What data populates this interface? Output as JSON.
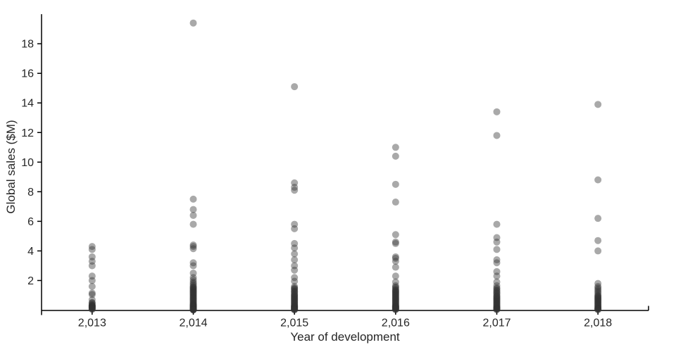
{
  "chart_data": {
    "type": "scatter",
    "title": "",
    "xlabel": "Year of development",
    "ylabel": "Global sales ($M)",
    "x_tick_labels": [
      "2,013",
      "2,014",
      "2,015",
      "2,016",
      "2,017",
      "2,018"
    ],
    "yticks": [
      2,
      4,
      6,
      8,
      10,
      12,
      14,
      16,
      18
    ],
    "ylim": [
      0,
      20
    ],
    "grid": false,
    "legend_position": "none",
    "axis_color": "#000000",
    "label_color": "#262626",
    "point_style": {
      "color": "#333333",
      "opacity": 0.42,
      "radius": 5
    },
    "series": [
      {
        "name": "2,013",
        "x": 2013,
        "values": [
          4.3,
          4.1,
          3.6,
          3.3,
          3.0,
          2.3,
          2.0,
          1.6,
          1.15,
          1.05,
          0.7,
          0.5,
          0.5,
          0.4,
          0.35,
          0.3,
          0.3,
          0.28,
          0.25,
          0.22,
          0.2,
          0.18,
          0.15,
          0.12,
          0.1,
          0.08,
          0.05
        ]
      },
      {
        "name": "2,014",
        "x": 2014,
        "values": [
          19.4,
          7.5,
          6.8,
          6.4,
          5.8,
          4.4,
          4.3,
          4.15,
          3.2,
          3.0,
          2.5,
          2.2,
          2.05,
          1.9,
          1.8,
          1.7,
          1.6,
          1.55,
          1.5,
          1.45,
          1.4,
          1.35,
          1.3,
          1.25,
          1.2,
          1.15,
          1.1,
          1.05,
          1.0,
          0.95,
          0.9,
          0.85,
          0.8,
          0.75,
          0.7,
          0.65,
          0.6,
          0.55,
          0.5,
          0.45,
          0.4,
          0.38,
          0.35,
          0.32,
          0.3,
          0.28,
          0.25,
          0.22,
          0.2,
          0.18,
          0.15,
          0.12,
          0.1,
          0.08,
          0.06,
          0.05,
          0.04,
          0.03,
          0.02,
          0.01
        ]
      },
      {
        "name": "2,015",
        "x": 2015,
        "values": [
          15.1,
          8.6,
          8.3,
          8.1,
          5.8,
          5.5,
          4.5,
          4.2,
          3.8,
          3.4,
          3.0,
          2.7,
          2.2,
          1.95,
          1.6,
          1.5,
          1.45,
          1.4,
          1.3,
          1.25,
          1.2,
          1.1,
          1.05,
          1.0,
          0.95,
          0.9,
          0.85,
          0.8,
          0.75,
          0.7,
          0.65,
          0.6,
          0.55,
          0.5,
          0.45,
          0.4,
          0.35,
          0.3,
          0.28,
          0.25,
          0.22,
          0.2,
          0.17,
          0.15,
          0.12,
          0.1,
          0.08,
          0.05,
          0.03,
          0.02
        ]
      },
      {
        "name": "2,016",
        "x": 2016,
        "values": [
          11.0,
          10.4,
          8.5,
          7.3,
          5.1,
          4.6,
          4.5,
          3.6,
          3.5,
          3.3,
          2.9,
          2.3,
          1.9,
          1.65,
          1.55,
          1.5,
          1.4,
          1.35,
          1.3,
          1.25,
          1.2,
          1.15,
          1.1,
          1.05,
          1.0,
          0.95,
          0.9,
          0.85,
          0.8,
          0.75,
          0.7,
          0.65,
          0.6,
          0.55,
          0.5,
          0.45,
          0.4,
          0.35,
          0.3,
          0.28,
          0.25,
          0.22,
          0.2,
          0.18,
          0.15,
          0.12,
          0.1,
          0.08,
          0.05,
          0.03
        ]
      },
      {
        "name": "2,017",
        "x": 2017,
        "values": [
          13.4,
          11.8,
          5.8,
          4.9,
          4.6,
          4.1,
          3.4,
          3.2,
          2.6,
          2.3,
          1.9,
          1.65,
          1.5,
          1.45,
          1.35,
          1.3,
          1.2,
          1.15,
          1.1,
          1.0,
          0.95,
          0.9,
          0.85,
          0.8,
          0.75,
          0.7,
          0.65,
          0.6,
          0.55,
          0.5,
          0.45,
          0.4,
          0.35,
          0.3,
          0.25,
          0.2,
          0.18,
          0.15,
          0.12,
          0.1,
          0.08,
          0.05,
          0.03
        ]
      },
      {
        "name": "2,018",
        "x": 2018,
        "values": [
          13.9,
          8.8,
          6.2,
          4.7,
          4.0,
          1.8,
          1.6,
          1.5,
          1.4,
          1.3,
          1.2,
          1.1,
          1.0,
          0.95,
          0.9,
          0.85,
          0.8,
          0.75,
          0.7,
          0.65,
          0.6,
          0.55,
          0.5,
          0.45,
          0.4,
          0.35,
          0.3,
          0.25,
          0.2,
          0.15,
          0.12,
          0.1,
          0.08,
          0.05,
          0.03
        ]
      }
    ]
  }
}
